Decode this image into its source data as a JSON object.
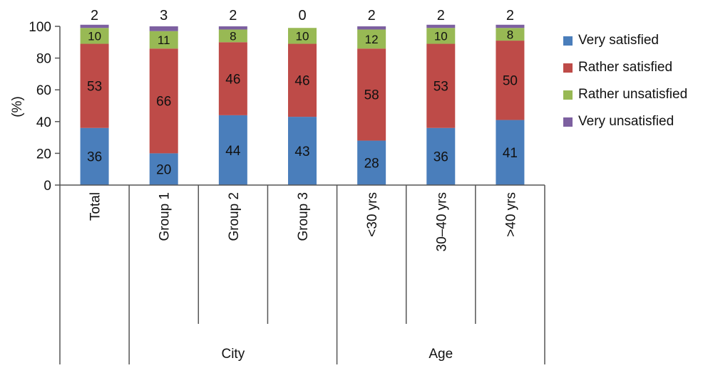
{
  "chart_data": {
    "type": "bar",
    "stacked": true,
    "categories": [
      "Total",
      "Group 1",
      "Group 2",
      "Group 3",
      "<30 yrs",
      "30–40 yrs",
      ">40 yrs"
    ],
    "groups": [
      {
        "label": "City",
        "categories": [
          "Group 1",
          "Group 2",
          "Group 3"
        ]
      },
      {
        "label": "Age",
        "categories": [
          "<30 yrs",
          "30–40 yrs",
          ">40 yrs"
        ]
      }
    ],
    "series": [
      {
        "name": "Very satisfied",
        "color": "#4a7ebb",
        "values": [
          36,
          20,
          44,
          43,
          28,
          36,
          41
        ]
      },
      {
        "name": "Rather satisfied",
        "color": "#be4b48",
        "values": [
          53,
          66,
          46,
          46,
          58,
          53,
          50
        ]
      },
      {
        "name": "Rather unsatisfied",
        "color": "#98b954",
        "values": [
          10,
          11,
          8,
          10,
          12,
          10,
          8
        ]
      },
      {
        "name": "Very unsatisfied",
        "color": "#7d60a0",
        "values": [
          2,
          3,
          2,
          0,
          2,
          2,
          2
        ]
      }
    ],
    "ylabel": "(%)",
    "ylim": [
      0,
      100
    ],
    "yticks": [
      0,
      20,
      40,
      60,
      80,
      100
    ],
    "grid": false,
    "legend_position": "right"
  }
}
